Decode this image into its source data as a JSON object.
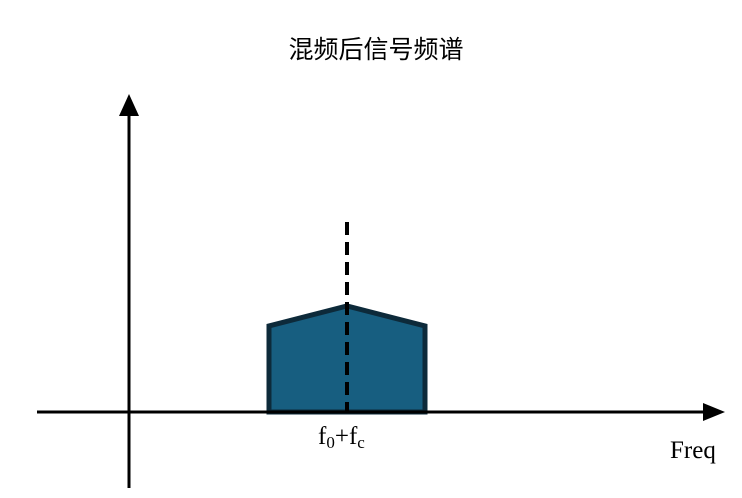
{
  "title": "混频后信号频谱",
  "x_axis_label": "Freq",
  "center_label": {
    "base": "f",
    "sub1": "0",
    "plus": "+",
    "base2": "f",
    "sub2": "c"
  },
  "colors": {
    "band_fill": "#175E80",
    "band_stroke": "#0D2A3A",
    "axis": "#000000"
  }
}
